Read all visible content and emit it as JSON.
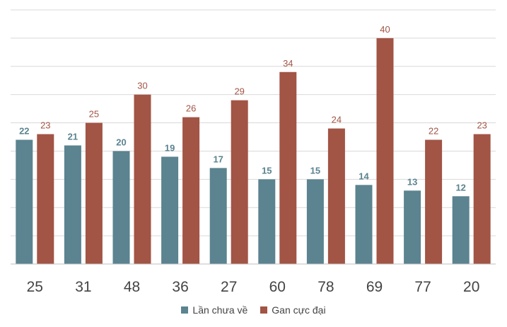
{
  "chart_data": {
    "type": "bar",
    "categories": [
      "25",
      "31",
      "48",
      "36",
      "27",
      "60",
      "78",
      "69",
      "77",
      "20"
    ],
    "series": [
      {
        "name": "Lần chưa về",
        "color": "#5b8390",
        "values": [
          22,
          21,
          20,
          19,
          17,
          15,
          15,
          14,
          13,
          12
        ]
      },
      {
        "name": "Gan cực đại",
        "color": "#a25445",
        "values": [
          23,
          25,
          30,
          26,
          29,
          34,
          24,
          40,
          22,
          23
        ]
      }
    ],
    "ylim": [
      0,
      45
    ],
    "grid": true,
    "legend": "bottom",
    "title": "",
    "xlabel": "",
    "ylabel": ""
  }
}
